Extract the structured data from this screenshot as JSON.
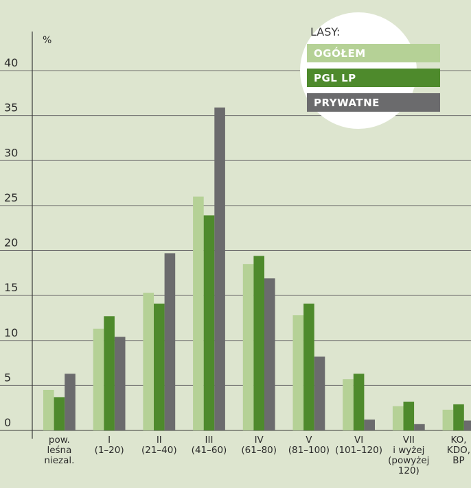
{
  "chart_data": {
    "type": "bar",
    "unit_label": "%",
    "ylim": [
      0,
      40
    ],
    "yticks": [
      0,
      5,
      10,
      15,
      20,
      25,
      30,
      35,
      40
    ],
    "grid": true,
    "legend": {
      "title": "LASY:",
      "placement": "top-right"
    },
    "categories": [
      [
        "pow.",
        "leśna",
        "niezal."
      ],
      [
        "I",
        "(1–20)"
      ],
      [
        "II",
        "(21–40)"
      ],
      [
        "III",
        "(41–60)"
      ],
      [
        "IV",
        "(61–80)"
      ],
      [
        "V",
        "(81–100)"
      ],
      [
        "VI",
        "(101–120)"
      ],
      [
        "VII",
        "i wyżej",
        "(powyżej",
        "120)"
      ],
      [
        "KO,",
        "KDO,",
        "BP"
      ]
    ],
    "series": [
      {
        "name": "OGÓŁEM",
        "color": "#b5d196",
        "values": [
          4.5,
          11.3,
          15.3,
          26.0,
          18.5,
          12.8,
          5.7,
          2.7,
          2.3
        ]
      },
      {
        "name": "PGL LP",
        "color": "#4e8a2c",
        "values": [
          3.7,
          12.7,
          14.1,
          23.9,
          19.4,
          14.1,
          6.3,
          3.2,
          2.9
        ]
      },
      {
        "name": "PRYWATNE",
        "color": "#6b6b6d",
        "values": [
          6.3,
          10.4,
          19.7,
          35.9,
          16.9,
          8.2,
          1.2,
          0.7,
          1.1
        ]
      }
    ]
  }
}
